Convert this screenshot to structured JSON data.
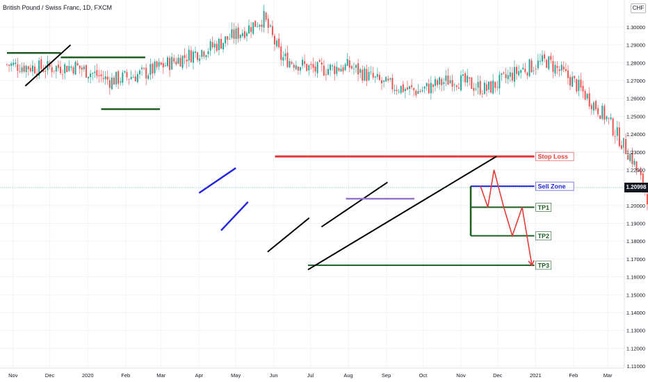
{
  "header": {
    "title": "British Pound / Swiss Franc, 1D, FXCM",
    "currency": "CHF"
  },
  "price_tag": "1.20998",
  "chart_data": {
    "type": "candlestick",
    "title": "British Pound / Swiss Franc, 1D, FXCM",
    "ylim": [
      1.11,
      1.31
    ],
    "y_ticks": [
      "1.30000",
      "1.29000",
      "1.28000",
      "1.27000",
      "1.26000",
      "1.25000",
      "1.24000",
      "1.23000",
      "1.22000",
      "1.21000",
      "1.20000",
      "1.19000",
      "1.18000",
      "1.17000",
      "1.16000",
      "1.15000",
      "1.14000",
      "1.13000",
      "1.12000",
      "1.11000"
    ],
    "x_ticks": [
      "Nov",
      "Dec",
      "2020",
      "Feb",
      "Mar",
      "Apr",
      "May",
      "Jun",
      "Jul",
      "Aug",
      "Sep",
      "Oct",
      "Nov",
      "Dec",
      "2021",
      "Feb",
      "Mar"
    ],
    "last_price": 1.20998,
    "colors": {
      "up": "#26a69a",
      "down": "#ef5350",
      "black": "#000000",
      "blue": "#2424e0",
      "purple": "#9575cd",
      "green": "#1b5e20",
      "red": "#e53935"
    },
    "trajectory": [
      [
        0,
        1.279
      ],
      [
        4,
        1.277
      ],
      [
        8,
        1.278
      ],
      [
        12,
        1.27
      ],
      [
        16,
        1.274
      ],
      [
        20,
        1.282
      ],
      [
        24,
        1.289
      ],
      [
        28,
        1.299
      ],
      [
        30,
        1.305
      ],
      [
        32,
        1.283
      ],
      [
        36,
        1.276
      ],
      [
        40,
        1.278
      ],
      [
        44,
        1.268
      ],
      [
        48,
        1.264
      ],
      [
        52,
        1.271
      ],
      [
        56,
        1.265
      ],
      [
        60,
        1.276
      ],
      [
        63,
        1.281
      ],
      [
        66,
        1.27
      ],
      [
        70,
        1.249
      ],
      [
        73,
        1.226
      ],
      [
        76,
        1.19
      ],
      [
        79,
        1.15
      ],
      [
        81,
        1.118
      ],
      [
        83,
        1.14
      ],
      [
        86,
        1.185
      ],
      [
        89,
        1.203
      ],
      [
        93,
        1.206
      ],
      [
        97,
        1.202
      ],
      [
        101,
        1.215
      ],
      [
        104,
        1.207
      ],
      [
        107,
        1.19
      ],
      [
        110,
        1.182
      ],
      [
        114,
        1.188
      ],
      [
        118,
        1.184
      ],
      [
        121,
        1.196
      ],
      [
        123,
        1.222
      ],
      [
        125,
        1.208
      ],
      [
        128,
        1.19
      ],
      [
        132,
        1.178
      ],
      [
        136,
        1.174
      ],
      [
        140,
        1.182
      ],
      [
        144,
        1.188
      ],
      [
        148,
        1.197
      ],
      [
        152,
        1.203
      ],
      [
        156,
        1.2
      ],
      [
        160,
        1.206
      ],
      [
        163,
        1.218
      ],
      [
        165,
        1.208
      ],
      [
        167,
        1.188
      ],
      [
        169,
        1.165
      ],
      [
        172,
        1.175
      ],
      [
        176,
        1.185
      ],
      [
        180,
        1.19
      ],
      [
        184,
        1.185
      ],
      [
        188,
        1.183
      ],
      [
        192,
        1.181
      ],
      [
        195,
        1.186
      ],
      [
        197,
        1.21
      ],
      [
        200,
        1.208
      ],
      [
        203,
        1.206
      ],
      [
        206,
        1.212
      ],
      [
        208,
        1.209
      ]
    ],
    "horizontal_levels": [
      {
        "y": 1.2275,
        "label": "Stop Loss"
      },
      {
        "y": 1.2108,
        "label": "Sell Zone"
      },
      {
        "y": 1.199,
        "label": "TP1"
      },
      {
        "y": 1.183,
        "label": "TP2"
      },
      {
        "y": 1.1665,
        "label": "TP3"
      }
    ],
    "analysis_lines": [
      {
        "color": "green",
        "x1": "2019-10-27",
        "y1": 1.2855,
        "x2": "2019-12-10",
        "y2": 1.2855
      },
      {
        "color": "green",
        "x1": "2019-12-10",
        "y1": 1.283,
        "x2": "2020-02-17",
        "y2": 1.283
      },
      {
        "color": "green",
        "x1": "2020-01-12",
        "y1": 1.254,
        "x2": "2020-02-29",
        "y2": 1.254
      },
      {
        "color": "black",
        "x1": "2019-11-11",
        "y1": 1.267,
        "x2": "2019-12-18",
        "y2": 1.29
      },
      {
        "color": "blue",
        "x1": "2020-04-01",
        "y1": 1.207,
        "x2": "2020-05-01",
        "y2": 1.221
      },
      {
        "color": "blue",
        "x1": "2020-04-19",
        "y1": 1.186,
        "x2": "2020-05-11",
        "y2": 1.202
      },
      {
        "color": "black",
        "x1": "2020-05-27",
        "y1": 1.174,
        "x2": "2020-06-30",
        "y2": 1.193
      },
      {
        "color": "black",
        "x1": "2020-07-10",
        "y1": 1.188,
        "x2": "2020-09-02",
        "y2": 1.213
      },
      {
        "color": "black",
        "x1": "2020-06-29",
        "y1": 1.164,
        "x2": "2020-11-30",
        "y2": 1.2275
      },
      {
        "color": "purple",
        "x1": "2020-07-30",
        "y1": 1.2038,
        "x2": "2020-09-24",
        "y2": 1.2038
      },
      {
        "color": "green",
        "x1": "2020-11-09",
        "y1": 1.199,
        "x2": "2020-11-09",
        "y2": 1.2108
      },
      {
        "color": "green",
        "x1": "2020-11-09",
        "y1": 1.183,
        "x2": "2020-11-09",
        "y2": 1.199
      }
    ],
    "projection": [
      [
        "2020-11-17",
        1.2108
      ],
      [
        "2020-11-23",
        1.199
      ],
      [
        "2020-11-28",
        1.22
      ],
      [
        "2020-12-06",
        1.199
      ],
      [
        "2020-12-13",
        1.183
      ],
      [
        "2020-12-21",
        1.199
      ],
      [
        "2020-12-29",
        1.1665
      ]
    ]
  }
}
